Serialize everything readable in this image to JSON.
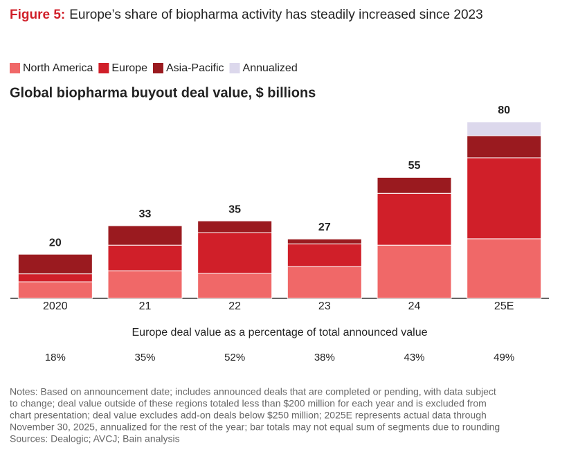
{
  "figure_label": "Figure 5:",
  "figure_title": "Europe’s share of biopharma activity has steadily increased since 2023",
  "chart_data": {
    "type": "stacked_bar",
    "title": "Global biopharma buyout deal value, $ billions",
    "categories": [
      "2020",
      "21",
      "22",
      "23",
      "24",
      "25E"
    ],
    "series": [
      {
        "name": "North America",
        "color": "#f06868",
        "values": [
          7.5,
          12.5,
          11.3,
          14.4,
          24.1,
          27.0
        ]
      },
      {
        "name": "Europe",
        "color": "#d01f29",
        "values": [
          3.6,
          11.6,
          18.5,
          10.3,
          23.5,
          36.7
        ]
      },
      {
        "name": "Asia-Pacific",
        "color": "#9a1a1f",
        "values": [
          8.9,
          8.8,
          5.3,
          2.2,
          7.2,
          10.0
        ]
      },
      {
        "name": "Annualized",
        "color": "#dcd8ec",
        "values": [
          null,
          null,
          null,
          null,
          null,
          6.3
        ]
      }
    ],
    "totals": [
      20,
      33,
      35,
      27,
      55,
      80
    ],
    "legend": "top-left"
  },
  "europe_share": {
    "title": "Europe deal value as a percentage of total announced value",
    "values": [
      18,
      35,
      52,
      38,
      43,
      49
    ],
    "value_labels": [
      "18%",
      "35%",
      "52%",
      "38%",
      "43%",
      "49%"
    ]
  },
  "notes": [
    "Notes: Based on announcement date; includes announced deals that are completed or pending, with data subject",
    "to change; deal value outside of these regions totaled less than $200 million for each year and is excluded from",
    "chart presentation; deal value excludes add-on deals below $250 million; 2025E represents actual data through",
    "November 30, 2025, annualized for the rest of the year; bar totals may not equal sum of segments due to rounding",
    "Sources: Dealogic; AVCJ; Bain analysis"
  ]
}
